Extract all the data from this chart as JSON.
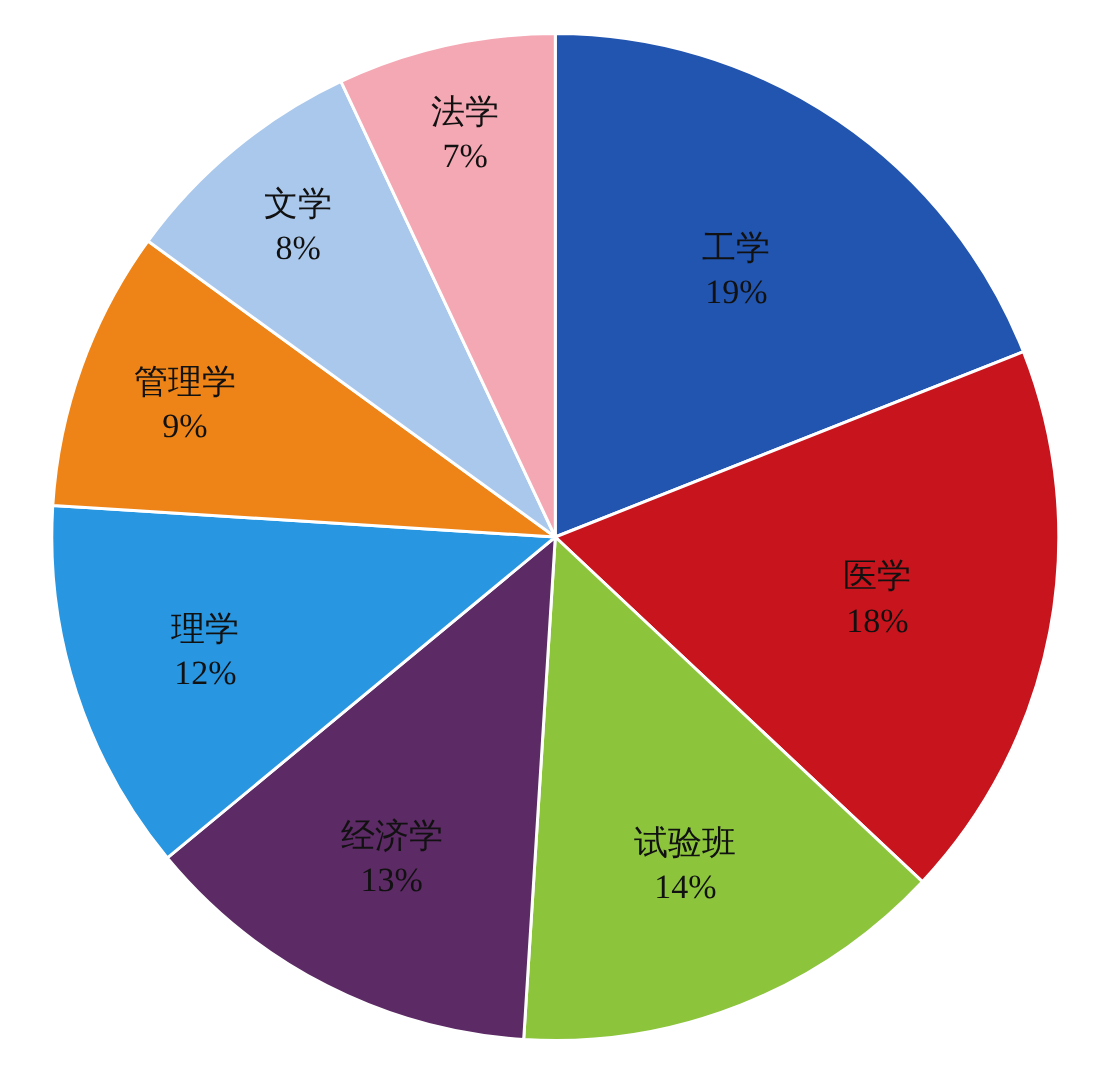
{
  "chart_data": {
    "type": "pie",
    "categories": [
      "工学",
      "医学",
      "试验班",
      "经济学",
      "理学",
      "管理学",
      "文学",
      "法学"
    ],
    "values": [
      19,
      18,
      14,
      13,
      12,
      9,
      8,
      7
    ],
    "value_labels": [
      "19%",
      "18%",
      "14%",
      "13%",
      "12%",
      "9%",
      "8%",
      "7%"
    ],
    "colors": [
      "#2255b0",
      "#c8141c",
      "#8cc43c",
      "#5c2a64",
      "#2896e0",
      "#ee8418",
      "#aac8ec",
      "#f4a8b4"
    ],
    "legend": false
  }
}
